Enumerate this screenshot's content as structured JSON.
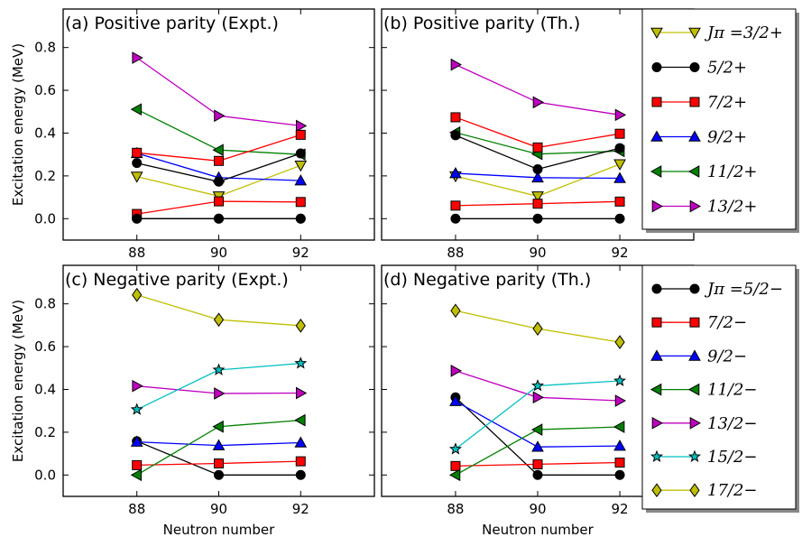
{
  "chart_data": [
    {
      "type": "line",
      "title": "(a) Positive parity (Expt.)",
      "xlabel": "",
      "ylabel": "Excitation energy (MeV)",
      "x": [
        88,
        90,
        92
      ],
      "xticks": [
        "88",
        "90",
        "92"
      ],
      "yticks": [
        "0.0",
        "0.2",
        "0.4",
        "0.6",
        "0.8"
      ],
      "xlim": [
        86.2,
        93.8
      ],
      "ylim": [
        -0.1,
        0.98
      ],
      "series": [
        {
          "name": "Jπ =3/2+",
          "values": [
            0.197,
            0.105,
            0.249
          ],
          "color": "#bfbf00",
          "marker": "tri-down"
        },
        {
          "name": "5/2+",
          "values": [
            0.0,
            0.0,
            0.0
          ],
          "color": "#000000",
          "marker": "circle"
        },
        {
          "name": "7/2+",
          "values": [
            0.022,
            0.081,
            0.078
          ],
          "color": "#ff0000",
          "marker": "square"
        },
        {
          "name": "9/2+",
          "values": [
            0.306,
            0.192,
            0.178
          ],
          "color": "#0000ff",
          "marker": "tri-up"
        },
        {
          "name": "11/2+",
          "values": [
            0.511,
            0.321,
            0.3
          ],
          "color": "#008000",
          "marker": "tri-left"
        },
        {
          "name": "13/2+",
          "values": [
            0.752,
            0.481,
            0.434
          ],
          "color": "#bf00bf",
          "marker": "tri-right"
        },
        {
          "name": "",
          "values": [
            0.26,
            0.173,
            0.305
          ],
          "color": "#000000",
          "marker": "circle"
        },
        {
          "name": "",
          "values": [
            0.308,
            0.27,
            0.392
          ],
          "color": "#ff0000",
          "marker": "square"
        },
        {
          "name": "",
          "values": [
            0.0,
            0.0,
            0.0
          ],
          "color": "#000000",
          "marker": "circle"
        }
      ]
    },
    {
      "type": "line",
      "title": "(b) Positive parity (Th.)",
      "xlabel": "",
      "ylabel": "",
      "x": [
        88,
        90,
        92
      ],
      "xticks": [
        "88",
        "90",
        "92"
      ],
      "xlim": [
        86.2,
        93.8
      ],
      "ylim": [
        -0.1,
        0.98
      ],
      "series": [
        {
          "name": "Jπ =3/2+",
          "values": [
            0.199,
            0.105,
            0.255
          ],
          "color": "#bfbf00",
          "marker": "tri-down"
        },
        {
          "name": "5/2+",
          "values": [
            0.0,
            0.0,
            0.0
          ],
          "color": "#000000",
          "marker": "circle"
        },
        {
          "name": "7/2+",
          "values": [
            0.061,
            0.07,
            0.08
          ],
          "color": "#ff0000",
          "marker": "square"
        },
        {
          "name": "9/2+",
          "values": [
            0.212,
            0.192,
            0.189
          ],
          "color": "#0000ff",
          "marker": "tri-up"
        },
        {
          "name": "11/2+",
          "values": [
            0.403,
            0.302,
            0.316
          ],
          "color": "#008000",
          "marker": "tri-left"
        },
        {
          "name": "13/2+",
          "values": [
            0.72,
            0.544,
            0.485
          ],
          "color": "#bf00bf",
          "marker": "tri-right"
        },
        {
          "name": "",
          "values": [
            0.39,
            0.231,
            0.33
          ],
          "color": "#000000",
          "marker": "circle"
        },
        {
          "name": "",
          "values": [
            0.474,
            0.333,
            0.397
          ],
          "color": "#ff0000",
          "marker": "square"
        }
      ]
    },
    {
      "type": "line",
      "title": "(c) Negative parity (Expt.)",
      "xlabel": "Neutron number",
      "ylabel": "Excitation energy (MeV)",
      "x": [
        88,
        90,
        92
      ],
      "xticks": [
        "88",
        "90",
        "92"
      ],
      "yticks": [
        "0.0",
        "0.2",
        "0.4",
        "0.6",
        "0.8"
      ],
      "xlim": [
        86.2,
        93.8
      ],
      "ylim": [
        -0.1,
        0.98
      ],
      "series": [
        {
          "name": "Jπ =5/2−",
          "values": [
            0.158,
            0.0,
            0.0
          ],
          "color": "#000000",
          "marker": "circle"
        },
        {
          "name": "7/2−",
          "values": [
            0.046,
            0.054,
            0.064
          ],
          "color": "#ff0000",
          "marker": "square"
        },
        {
          "name": "9/2−",
          "values": [
            0.155,
            0.138,
            0.151
          ],
          "color": "#0000ff",
          "marker": "tri-up"
        },
        {
          "name": "11/2−",
          "values": [
            0.0,
            0.226,
            0.256
          ],
          "color": "#008000",
          "marker": "tri-left"
        },
        {
          "name": "13/2−",
          "values": [
            0.416,
            0.381,
            0.383
          ],
          "color": "#bf00bf",
          "marker": "tri-right"
        },
        {
          "name": "15/2−",
          "values": [
            0.306,
            0.491,
            0.522
          ],
          "color": "#00bfbf",
          "marker": "star"
        },
        {
          "name": "17/2−",
          "values": [
            0.842,
            0.726,
            0.698
          ],
          "color": "#bfbf00",
          "marker": "diamond"
        }
      ]
    },
    {
      "type": "line",
      "title": "(d) Negative parity (Th.)",
      "xlabel": "Neutron number",
      "ylabel": "",
      "x": [
        88,
        90,
        92
      ],
      "xticks": [
        "88",
        "90",
        "92"
      ],
      "xlim": [
        86.2,
        93.8
      ],
      "ylim": [
        -0.1,
        0.98
      ],
      "series": [
        {
          "name": "Jπ =5/2−",
          "values": [
            0.363,
            0.0,
            0.0
          ],
          "color": "#000000",
          "marker": "circle"
        },
        {
          "name": "7/2−",
          "values": [
            0.042,
            0.05,
            0.058
          ],
          "color": "#ff0000",
          "marker": "square"
        },
        {
          "name": "9/2−",
          "values": [
            0.345,
            0.131,
            0.136
          ],
          "color": "#0000ff",
          "marker": "tri-up"
        },
        {
          "name": "11/2−",
          "values": [
            0.0,
            0.212,
            0.225
          ],
          "color": "#008000",
          "marker": "tri-left"
        },
        {
          "name": "13/2−",
          "values": [
            0.487,
            0.363,
            0.347
          ],
          "color": "#bf00bf",
          "marker": "tri-right"
        },
        {
          "name": "15/2−",
          "values": [
            0.121,
            0.417,
            0.44
          ],
          "color": "#00bfbf",
          "marker": "star"
        },
        {
          "name": "17/2−",
          "values": [
            0.768,
            0.684,
            0.621
          ],
          "color": "#bfbf00",
          "marker": "diamond"
        }
      ]
    }
  ],
  "legends": {
    "positive": [
      {
        "label": "Jπ =3/2+",
        "color": "#bfbf00",
        "marker": "tri-down"
      },
      {
        "label": "5/2+",
        "color": "#000000",
        "marker": "circle"
      },
      {
        "label": "7/2+",
        "color": "#ff0000",
        "marker": "square"
      },
      {
        "label": "9/2+",
        "color": "#0000ff",
        "marker": "tri-up"
      },
      {
        "label": "11/2+",
        "color": "#008000",
        "marker": "tri-left"
      },
      {
        "label": "13/2+",
        "color": "#bf00bf",
        "marker": "tri-right"
      }
    ],
    "negative": [
      {
        "label": "Jπ =5/2−",
        "color": "#000000",
        "marker": "circle"
      },
      {
        "label": "7/2−",
        "color": "#ff0000",
        "marker": "square"
      },
      {
        "label": "9/2−",
        "color": "#0000ff",
        "marker": "tri-up"
      },
      {
        "label": "11/2−",
        "color": "#008000",
        "marker": "tri-left"
      },
      {
        "label": "13/2−",
        "color": "#bf00bf",
        "marker": "tri-right"
      },
      {
        "label": "15/2−",
        "color": "#00bfbf",
        "marker": "star"
      },
      {
        "label": "17/2−",
        "color": "#bfbf00",
        "marker": "diamond"
      }
    ]
  }
}
